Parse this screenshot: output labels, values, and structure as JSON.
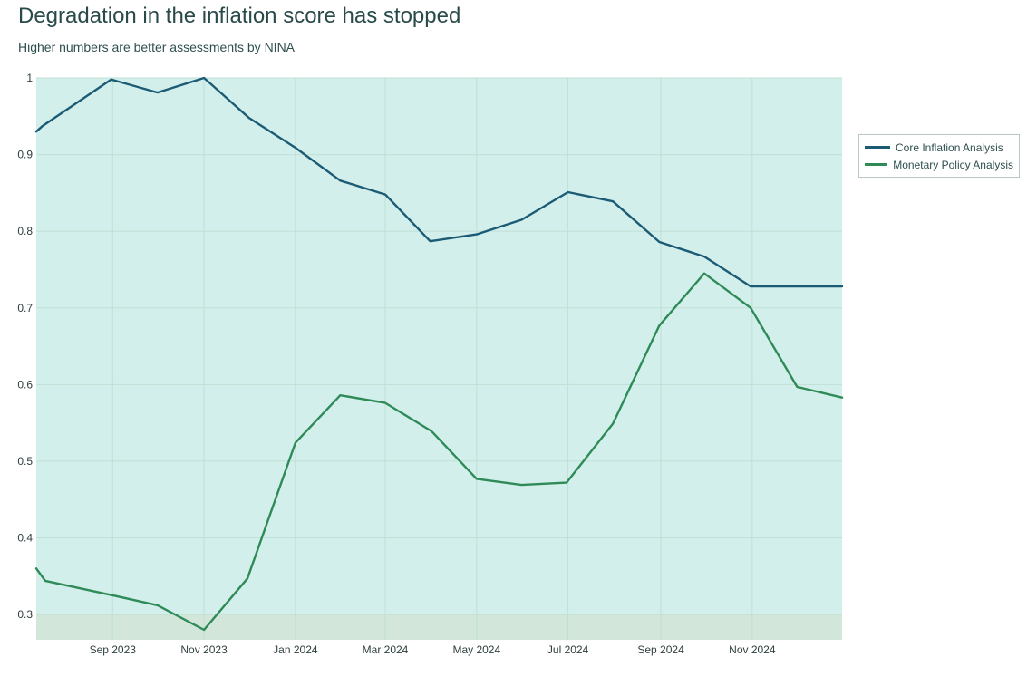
{
  "header": {
    "title": "Degradation in the inflation score has stopped",
    "subtitle": "Higher numbers are better assessments by NINA"
  },
  "colors": {
    "plot_background": "#d3efec",
    "low_zone": "#d3e6da",
    "grid": "#bfe0d4",
    "core": "#1c5b74",
    "monetary": "#2e8b57"
  },
  "chart_data": {
    "type": "line",
    "title": "Degradation in the inflation score has stopped",
    "subtitle": "Higher numbers are better assessments by NINA",
    "xlabel": "",
    "ylabel": "",
    "xlim": [
      "2023-07-12",
      "2024-12-31"
    ],
    "ylim": [
      0.267,
      1.0
    ],
    "grid": true,
    "legend_position": "top-right-outside",
    "shaded_band": {
      "y_from": 0.267,
      "y_to": 0.3
    },
    "x_ticks": [
      {
        "date": "2023-09-01",
        "label": "Sep 2023"
      },
      {
        "date": "2023-11-01",
        "label": "Nov 2023"
      },
      {
        "date": "2024-01-01",
        "label": "Jan 2024"
      },
      {
        "date": "2024-03-01",
        "label": "Mar 2024"
      },
      {
        "date": "2024-05-01",
        "label": "May 2024"
      },
      {
        "date": "2024-07-01",
        "label": "Jul 2024"
      },
      {
        "date": "2024-09-01",
        "label": "Sep 2024"
      },
      {
        "date": "2024-11-01",
        "label": "Nov 2024"
      }
    ],
    "y_ticks": [
      {
        "value": 0.3,
        "label": "0.3"
      },
      {
        "value": 0.4,
        "label": "0.4"
      },
      {
        "value": 0.5,
        "label": "0.5"
      },
      {
        "value": 0.6,
        "label": "0.6"
      },
      {
        "value": 0.7,
        "label": "0.7"
      },
      {
        "value": 0.8,
        "label": "0.8"
      },
      {
        "value": 0.9,
        "label": "0.9"
      },
      {
        "value": 1.0,
        "label": "1"
      }
    ],
    "series": [
      {
        "name": "Core Inflation Analysis",
        "color": "#1c5b74",
        "points": [
          {
            "x": "2023-07-12",
            "y": 0.93
          },
          {
            "x": "2023-07-16",
            "y": 0.937
          },
          {
            "x": "2023-08-31",
            "y": 0.998
          },
          {
            "x": "2023-10-01",
            "y": 0.981
          },
          {
            "x": "2023-11-01",
            "y": 1.0
          },
          {
            "x": "2023-12-01",
            "y": 0.948
          },
          {
            "x": "2024-01-01",
            "y": 0.909
          },
          {
            "x": "2024-01-31",
            "y": 0.866
          },
          {
            "x": "2024-03-01",
            "y": 0.848
          },
          {
            "x": "2024-03-31",
            "y": 0.787
          },
          {
            "x": "2024-05-01",
            "y": 0.796
          },
          {
            "x": "2024-05-31",
            "y": 0.815
          },
          {
            "x": "2024-07-01",
            "y": 0.851
          },
          {
            "x": "2024-07-31",
            "y": 0.839
          },
          {
            "x": "2024-08-31",
            "y": 0.786
          },
          {
            "x": "2024-09-30",
            "y": 0.767
          },
          {
            "x": "2024-10-31",
            "y": 0.728
          },
          {
            "x": "2024-12-31",
            "y": 0.728
          }
        ]
      },
      {
        "name": "Monetary Policy Analysis",
        "color": "#2e8b57",
        "points": [
          {
            "x": "2023-07-12",
            "y": 0.36
          },
          {
            "x": "2023-07-18",
            "y": 0.344
          },
          {
            "x": "2023-09-01",
            "y": 0.325
          },
          {
            "x": "2023-10-01",
            "y": 0.312
          },
          {
            "x": "2023-11-01",
            "y": 0.28
          },
          {
            "x": "2023-11-30",
            "y": 0.347
          },
          {
            "x": "2024-01-01",
            "y": 0.524
          },
          {
            "x": "2024-01-31",
            "y": 0.586
          },
          {
            "x": "2024-03-01",
            "y": 0.576
          },
          {
            "x": "2024-04-01",
            "y": 0.539
          },
          {
            "x": "2024-05-01",
            "y": 0.477
          },
          {
            "x": "2024-05-31",
            "y": 0.469
          },
          {
            "x": "2024-06-30",
            "y": 0.472
          },
          {
            "x": "2024-07-31",
            "y": 0.549
          },
          {
            "x": "2024-08-31",
            "y": 0.677
          },
          {
            "x": "2024-09-30",
            "y": 0.745
          },
          {
            "x": "2024-10-31",
            "y": 0.7
          },
          {
            "x": "2024-12-01",
            "y": 0.597
          },
          {
            "x": "2024-12-31",
            "y": 0.583
          }
        ]
      }
    ]
  }
}
